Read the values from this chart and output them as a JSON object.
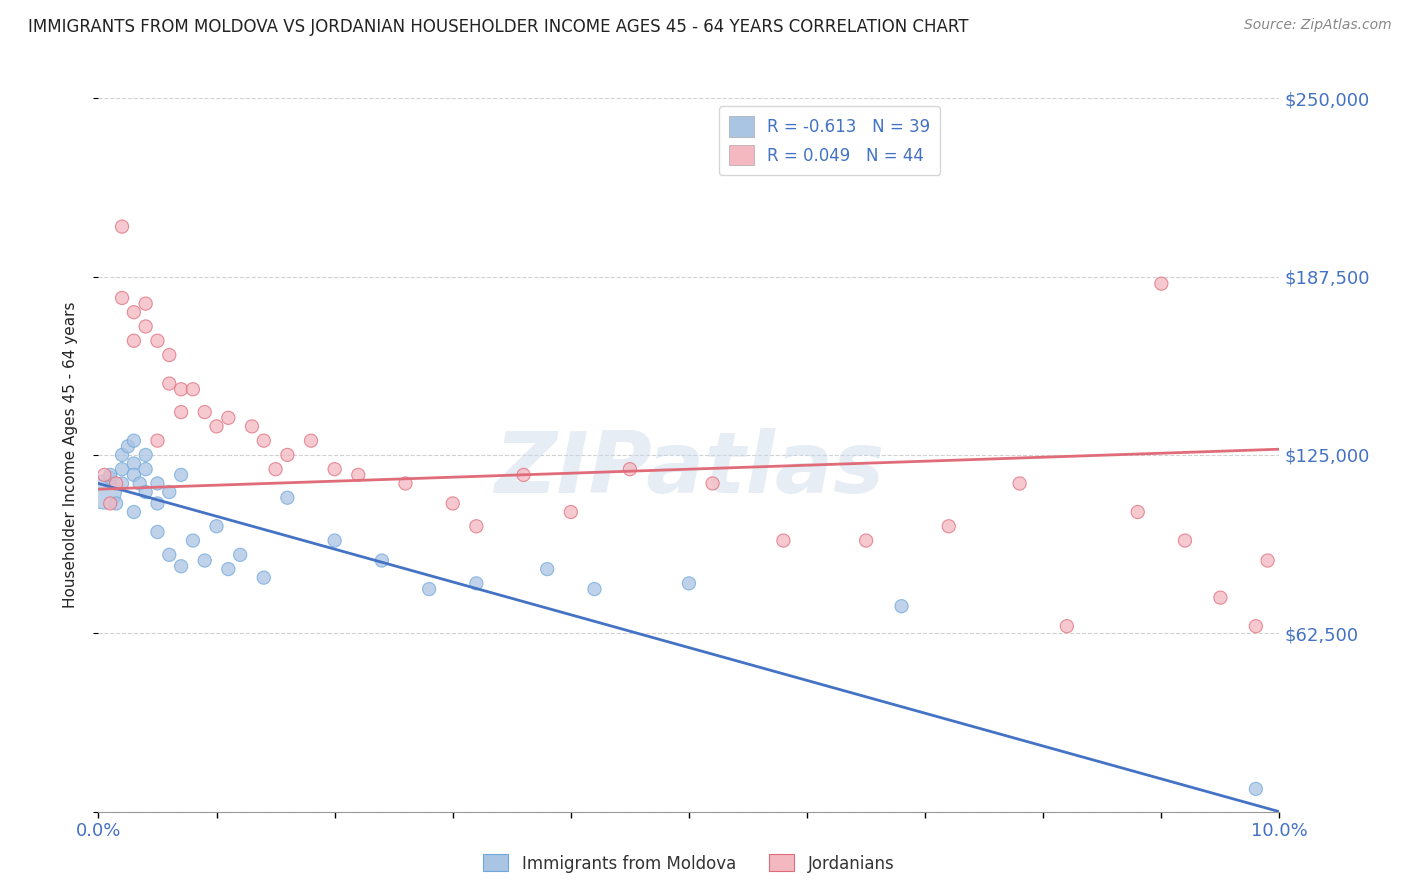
{
  "title": "IMMIGRANTS FROM MOLDOVA VS JORDANIAN HOUSEHOLDER INCOME AGES 45 - 64 YEARS CORRELATION CHART",
  "source": "Source: ZipAtlas.com",
  "ylabel": "Householder Income Ages 45 - 64 years",
  "xlim": [
    0,
    0.1
  ],
  "ylim": [
    0,
    250000
  ],
  "yticks": [
    0,
    62500,
    125000,
    187500,
    250000
  ],
  "ytick_labels": [
    "",
    "$62,500",
    "$125,000",
    "$187,500",
    "$250,000"
  ],
  "watermark": "ZIPatlas",
  "legend_entries": [
    {
      "label": "R = -0.613   N = 39",
      "color": "#aac4e3"
    },
    {
      "label": "R = 0.049   N = 44",
      "color": "#f4b8c1"
    }
  ],
  "blue_color": "#aac4e3",
  "pink_color": "#f4b8c1",
  "blue_edge_color": "#6fa8dc",
  "pink_edge_color": "#e06c7a",
  "blue_line_color": "#4472c4",
  "pink_line_color": "#e06c7a",
  "grid_color": "#cccccc",
  "title_color": "#222222",
  "axis_label_color": "#222222",
  "tick_label_color": "#4472c4",
  "source_color": "#888888",
  "legend_label_color": "#4472c4",
  "blue_scatter_x": [
    0.0005,
    0.001,
    0.001,
    0.0015,
    0.002,
    0.002,
    0.002,
    0.0025,
    0.003,
    0.003,
    0.003,
    0.003,
    0.0035,
    0.004,
    0.004,
    0.004,
    0.005,
    0.005,
    0.005,
    0.006,
    0.006,
    0.007,
    0.007,
    0.008,
    0.009,
    0.01,
    0.011,
    0.012,
    0.014,
    0.016,
    0.02,
    0.024,
    0.028,
    0.032,
    0.038,
    0.042,
    0.05,
    0.068,
    0.098
  ],
  "blue_scatter_y": [
    112000,
    117000,
    118000,
    108000,
    125000,
    120000,
    115000,
    128000,
    130000,
    122000,
    118000,
    105000,
    115000,
    120000,
    112000,
    125000,
    108000,
    115000,
    98000,
    112000,
    90000,
    118000,
    86000,
    95000,
    88000,
    100000,
    85000,
    90000,
    82000,
    110000,
    95000,
    88000,
    78000,
    80000,
    85000,
    78000,
    80000,
    72000,
    8000
  ],
  "blue_scatter_sizes": [
    600,
    90,
    90,
    90,
    90,
    90,
    90,
    90,
    90,
    90,
    90,
    90,
    90,
    90,
    90,
    90,
    90,
    90,
    90,
    90,
    90,
    90,
    90,
    90,
    90,
    90,
    90,
    90,
    90,
    90,
    90,
    90,
    90,
    90,
    90,
    90,
    90,
    90,
    90
  ],
  "pink_scatter_x": [
    0.0005,
    0.001,
    0.0015,
    0.002,
    0.002,
    0.003,
    0.003,
    0.004,
    0.004,
    0.005,
    0.005,
    0.006,
    0.006,
    0.007,
    0.007,
    0.008,
    0.009,
    0.01,
    0.011,
    0.013,
    0.014,
    0.015,
    0.016,
    0.018,
    0.02,
    0.022,
    0.026,
    0.03,
    0.032,
    0.036,
    0.04,
    0.045,
    0.052,
    0.058,
    0.065,
    0.072,
    0.078,
    0.082,
    0.088,
    0.09,
    0.092,
    0.095,
    0.098,
    0.099
  ],
  "pink_scatter_y": [
    118000,
    108000,
    115000,
    205000,
    180000,
    175000,
    165000,
    170000,
    178000,
    165000,
    130000,
    160000,
    150000,
    148000,
    140000,
    148000,
    140000,
    135000,
    138000,
    135000,
    130000,
    120000,
    125000,
    130000,
    120000,
    118000,
    115000,
    108000,
    100000,
    118000,
    105000,
    120000,
    115000,
    95000,
    95000,
    100000,
    115000,
    65000,
    105000,
    185000,
    95000,
    75000,
    65000,
    88000
  ],
  "pink_scatter_sizes": [
    90,
    90,
    90,
    90,
    90,
    90,
    90,
    90,
    90,
    90,
    90,
    90,
    90,
    90,
    90,
    90,
    90,
    90,
    90,
    90,
    90,
    90,
    90,
    90,
    90,
    90,
    90,
    90,
    90,
    90,
    90,
    90,
    90,
    90,
    90,
    90,
    90,
    90,
    90,
    90,
    90,
    90,
    90,
    90
  ],
  "blue_trend_x": [
    0,
    0.1
  ],
  "blue_trend_y": [
    115000,
    0
  ],
  "pink_trend_x": [
    0,
    0.1
  ],
  "pink_trend_y": [
    113000,
    127000
  ],
  "background_color": "#ffffff",
  "plot_bg_color": "#ffffff"
}
